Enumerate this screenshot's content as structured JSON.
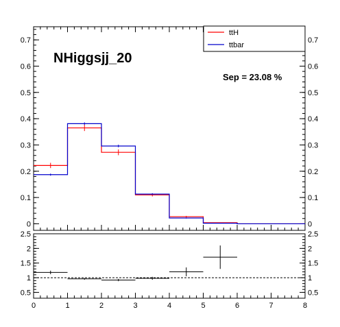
{
  "chart_data": [
    {
      "type": "histogram",
      "title": "NHiggsjj_20",
      "annotation": "Sep = 23.08 %",
      "xlim": [
        0,
        8
      ],
      "ylim": [
        -0.025,
        0.75
      ],
      "y_ticks": [
        0,
        0.1,
        0.2,
        0.3,
        0.4,
        0.5,
        0.6,
        0.7
      ],
      "y_tick_labels": [
        "0",
        "0.1",
        "0.2",
        "0.3",
        "0.4",
        "0.5",
        "0.6",
        "0.7"
      ],
      "bin_edges": [
        0,
        1,
        2,
        3,
        4,
        5,
        6,
        7,
        8
      ],
      "legend": {
        "placement": "top-right"
      },
      "series": [
        {
          "name": "ttH",
          "color": "#ff0000",
          "values": [
            0.222,
            0.365,
            0.272,
            0.11,
            0.027,
            0.004,
            0.0,
            0.0
          ],
          "errors": [
            0.01,
            0.012,
            0.011,
            0.006,
            0.003,
            0.001,
            0,
            0
          ]
        },
        {
          "name": "ttbar",
          "color": "#0000cc",
          "values": [
            0.187,
            0.381,
            0.296,
            0.113,
            0.022,
            0.002,
            0.0,
            0.0
          ],
          "errors": [
            0.004,
            0.005,
            0.005,
            0.003,
            0.002,
            0.001,
            0,
            0
          ]
        }
      ]
    },
    {
      "type": "ratio",
      "xlim": [
        0,
        8
      ],
      "ylim": [
        0.3,
        2.5
      ],
      "x_ticks": [
        0,
        1,
        2,
        3,
        4,
        5,
        6,
        7,
        8
      ],
      "x_tick_labels": [
        "0",
        "1",
        "2",
        "3",
        "4",
        "5",
        "6",
        "7",
        "8"
      ],
      "y_ticks": [
        0.5,
        1,
        1.5,
        2,
        2.5
      ],
      "y_tick_labels": [
        "0.5",
        "1",
        "1.5",
        "2",
        "2.5"
      ],
      "reference_line": 1,
      "points": [
        {
          "x": 0.5,
          "y": 1.18,
          "xerr": 0.5,
          "yerr": 0.06
        },
        {
          "x": 1.5,
          "y": 0.96,
          "xerr": 0.5,
          "yerr": 0.03
        },
        {
          "x": 2.5,
          "y": 0.92,
          "xerr": 0.5,
          "yerr": 0.04
        },
        {
          "x": 3.5,
          "y": 0.98,
          "xerr": 0.5,
          "yerr": 0.05
        },
        {
          "x": 4.5,
          "y": 1.2,
          "xerr": 0.5,
          "yerr": 0.15
        },
        {
          "x": 5.5,
          "y": 1.7,
          "xerr": 0.5,
          "yerr": 0.4
        }
      ]
    }
  ]
}
